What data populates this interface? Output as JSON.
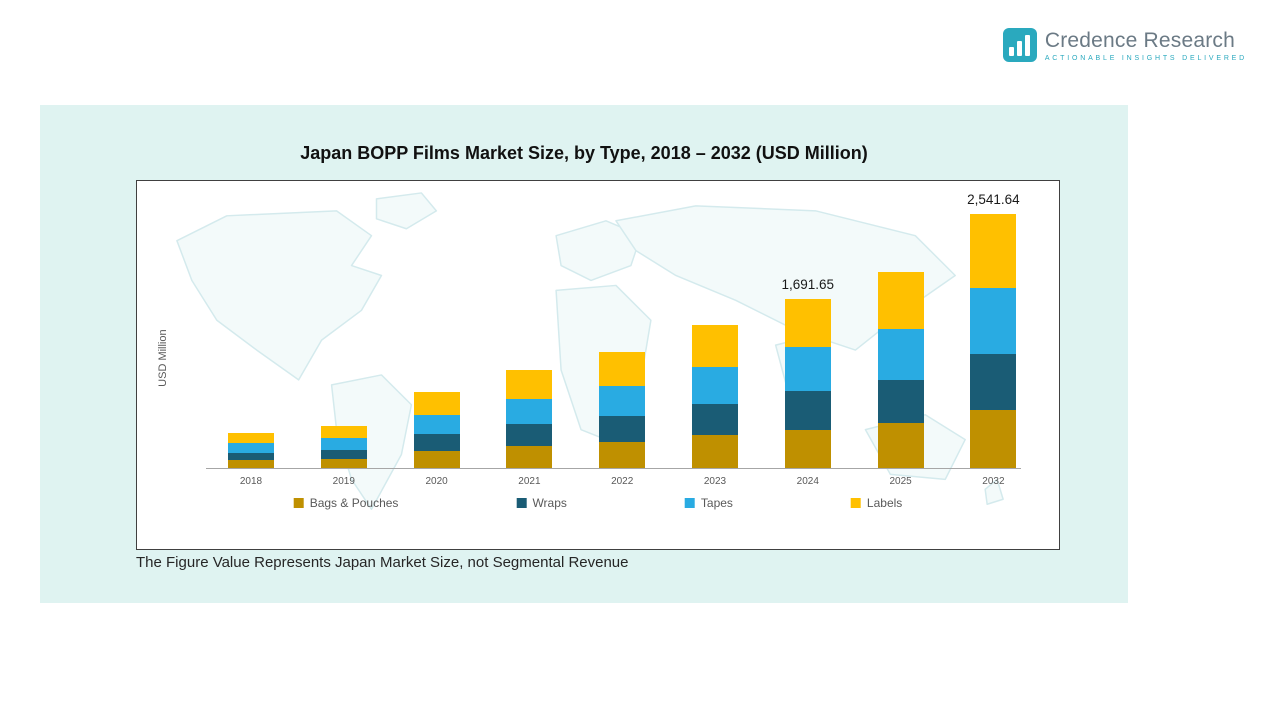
{
  "logo": {
    "name": "Credence Research",
    "tagline": "Actionable Insights Delivered"
  },
  "panel": {
    "title": "Japan BOPP Films Market Size, by Type, 2018 – 2032 (USD Million)",
    "note": "The Figure Value Represents Japan Market Size, not Segmental Revenue",
    "y_axis_label": "USD Million"
  },
  "chart_data": {
    "type": "bar",
    "stacked": true,
    "title": "Japan BOPP Films Market Size, by Type, 2018 – 2032 (USD Million)",
    "xlabel": "",
    "ylabel": "USD Million",
    "ylim": [
      0,
      2800
    ],
    "grid": false,
    "legend_position": "bottom",
    "categories": [
      "2018",
      "2019",
      "2020",
      "2021",
      "2022",
      "2023",
      "2024",
      "2025",
      "2032"
    ],
    "series": [
      {
        "name": "Bags & Pouches",
        "color": "#BF9000",
        "values": [
          80,
          95,
          175,
          225,
          265,
          330,
          380,
          450,
          580
        ]
      },
      {
        "name": "Wraps",
        "color": "#1A5C75",
        "values": [
          75,
          90,
          165,
          215,
          255,
          315,
          390,
          430,
          560
        ]
      },
      {
        "name": "Tapes",
        "color": "#29ABE2",
        "values": [
          95,
          115,
          195,
          255,
          300,
          370,
          440,
          510,
          660
        ]
      },
      {
        "name": "Labels",
        "color": "#FFC000",
        "values": [
          100,
          120,
          225,
          285,
          340,
          415,
          481.65,
          570,
          741.64
        ]
      }
    ],
    "totals": [
      350,
      420,
      760,
      980,
      1160,
      1430,
      1691.65,
      1960,
      2541.64
    ],
    "data_labels": [
      {
        "category": "2024",
        "text": "1,691.65"
      },
      {
        "category": "2032",
        "text": "2,541.64"
      }
    ]
  }
}
